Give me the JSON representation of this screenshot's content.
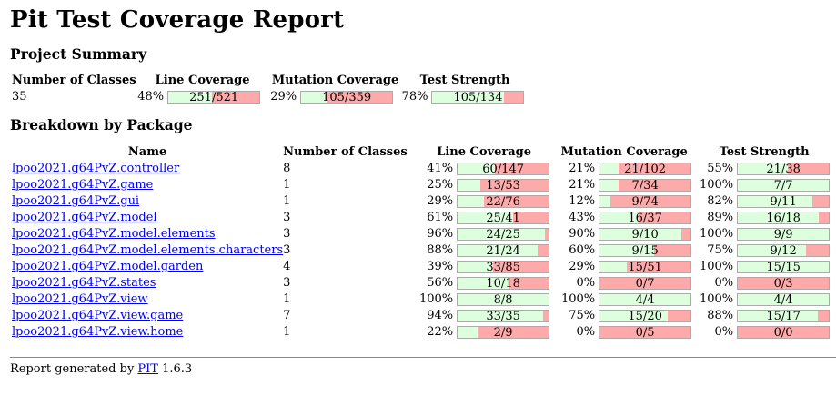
{
  "title": "Pit Test Coverage Report",
  "project_summary": {
    "heading": "Project Summary",
    "headers": {
      "classes": "Number of Classes",
      "line": "Line Coverage",
      "mutation": "Mutation Coverage",
      "strength": "Test Strength"
    },
    "classes": "35",
    "line": {
      "pct": "48%",
      "label": "251/521",
      "covered": 251,
      "total": 521
    },
    "mutation": {
      "pct": "29%",
      "label": "105/359",
      "covered": 105,
      "total": 359
    },
    "strength": {
      "pct": "78%",
      "label": "105/134",
      "covered": 105,
      "total": 134
    }
  },
  "breakdown": {
    "heading": "Breakdown by Package",
    "headers": {
      "name": "Name",
      "classes": "Number of Classes",
      "line": "Line Coverage",
      "mutation": "Mutation Coverage",
      "strength": "Test Strength"
    },
    "packages": [
      {
        "name": "lpoo2021.g64PvZ.controller",
        "classes": "8",
        "line": {
          "pct": "41%",
          "label": "60/147",
          "covered": 60,
          "total": 147
        },
        "mutation": {
          "pct": "21%",
          "label": "21/102",
          "covered": 21,
          "total": 102
        },
        "strength": {
          "pct": "55%",
          "label": "21/38",
          "covered": 21,
          "total": 38
        }
      },
      {
        "name": "lpoo2021.g64PvZ.game",
        "classes": "1",
        "line": {
          "pct": "25%",
          "label": "13/53",
          "covered": 13,
          "total": 53
        },
        "mutation": {
          "pct": "21%",
          "label": "7/34",
          "covered": 7,
          "total": 34
        },
        "strength": {
          "pct": "100%",
          "label": "7/7",
          "covered": 7,
          "total": 7
        }
      },
      {
        "name": "lpoo2021.g64PvZ.gui",
        "classes": "1",
        "line": {
          "pct": "29%",
          "label": "22/76",
          "covered": 22,
          "total": 76
        },
        "mutation": {
          "pct": "12%",
          "label": "9/74",
          "covered": 9,
          "total": 74
        },
        "strength": {
          "pct": "82%",
          "label": "9/11",
          "covered": 9,
          "total": 11
        }
      },
      {
        "name": "lpoo2021.g64PvZ.model",
        "classes": "3",
        "line": {
          "pct": "61%",
          "label": "25/41",
          "covered": 25,
          "total": 41
        },
        "mutation": {
          "pct": "43%",
          "label": "16/37",
          "covered": 16,
          "total": 37
        },
        "strength": {
          "pct": "89%",
          "label": "16/18",
          "covered": 16,
          "total": 18
        }
      },
      {
        "name": "lpoo2021.g64PvZ.model.elements",
        "classes": "3",
        "line": {
          "pct": "96%",
          "label": "24/25",
          "covered": 24,
          "total": 25
        },
        "mutation": {
          "pct": "90%",
          "label": "9/10",
          "covered": 9,
          "total": 10
        },
        "strength": {
          "pct": "100%",
          "label": "9/9",
          "covered": 9,
          "total": 9
        }
      },
      {
        "name": "lpoo2021.g64PvZ.model.elements.characters",
        "classes": "3",
        "line": {
          "pct": "88%",
          "label": "21/24",
          "covered": 21,
          "total": 24
        },
        "mutation": {
          "pct": "60%",
          "label": "9/15",
          "covered": 9,
          "total": 15
        },
        "strength": {
          "pct": "75%",
          "label": "9/12",
          "covered": 9,
          "total": 12
        }
      },
      {
        "name": "lpoo2021.g64PvZ.model.garden",
        "classes": "4",
        "line": {
          "pct": "39%",
          "label": "33/85",
          "covered": 33,
          "total": 85
        },
        "mutation": {
          "pct": "29%",
          "label": "15/51",
          "covered": 15,
          "total": 51
        },
        "strength": {
          "pct": "100%",
          "label": "15/15",
          "covered": 15,
          "total": 15
        }
      },
      {
        "name": "lpoo2021.g64PvZ.states",
        "classes": "3",
        "line": {
          "pct": "56%",
          "label": "10/18",
          "covered": 10,
          "total": 18
        },
        "mutation": {
          "pct": "0%",
          "label": "0/7",
          "covered": 0,
          "total": 7
        },
        "strength": {
          "pct": "0%",
          "label": "0/3",
          "covered": 0,
          "total": 3
        }
      },
      {
        "name": "lpoo2021.g64PvZ.view",
        "classes": "1",
        "line": {
          "pct": "100%",
          "label": "8/8",
          "covered": 8,
          "total": 8
        },
        "mutation": {
          "pct": "100%",
          "label": "4/4",
          "covered": 4,
          "total": 4
        },
        "strength": {
          "pct": "100%",
          "label": "4/4",
          "covered": 4,
          "total": 4
        }
      },
      {
        "name": "lpoo2021.g64PvZ.view.game",
        "classes": "7",
        "line": {
          "pct": "94%",
          "label": "33/35",
          "covered": 33,
          "total": 35
        },
        "mutation": {
          "pct": "75%",
          "label": "15/20",
          "covered": 15,
          "total": 20
        },
        "strength": {
          "pct": "88%",
          "label": "15/17",
          "covered": 15,
          "total": 17
        }
      },
      {
        "name": "lpoo2021.g64PvZ.view.home",
        "classes": "1",
        "line": {
          "pct": "22%",
          "label": "2/9",
          "covered": 2,
          "total": 9
        },
        "mutation": {
          "pct": "0%",
          "label": "0/5",
          "covered": 0,
          "total": 5
        },
        "strength": {
          "pct": "0%",
          "label": "0/0",
          "covered": 0,
          "total": 0
        }
      }
    ]
  },
  "footer": {
    "prefix": "Report generated by ",
    "link": "PIT",
    "version": " 1.6.3"
  },
  "colors": {
    "covered": "#ddffdd",
    "uncovered": "#ffaaaa",
    "link": "#0000ee"
  }
}
